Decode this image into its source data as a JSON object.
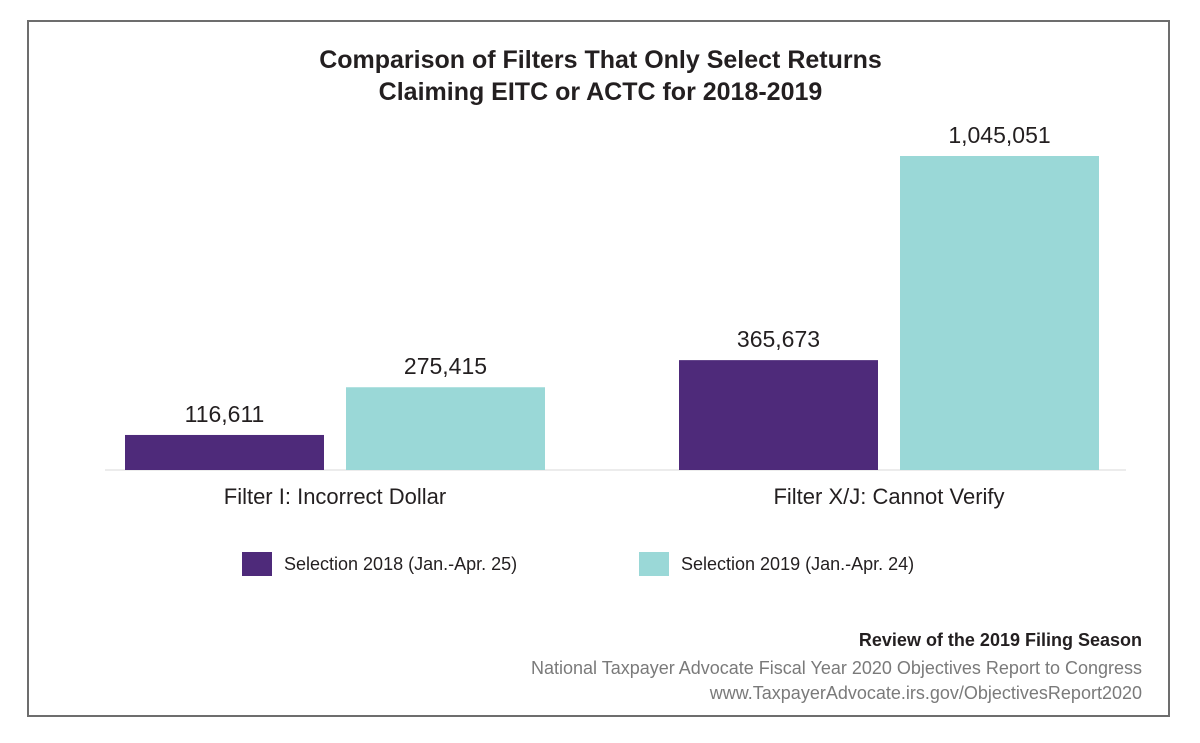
{
  "chart_data": {
    "type": "bar",
    "title_line1": "Comparison of Filters That Only Select Returns",
    "title_line2": "Claiming EITC or ACTC for 2018-2019",
    "categories": [
      "Filter I: Incorrect Dollar",
      "Filter X/J: Cannot Verify"
    ],
    "series": [
      {
        "name": "Selection 2018 (Jan.-Apr. 25)",
        "color": "#4e2a7a",
        "values": [
          116611,
          365673
        ],
        "labels": [
          "116,611",
          "365,673"
        ]
      },
      {
        "name": "Selection 2019 (Jan.-Apr. 24)",
        "color": "#9ad8d7",
        "values": [
          275415,
          1045051
        ],
        "labels": [
          "275,415",
          "1,045,051"
        ]
      }
    ],
    "ylim": [
      0,
      1045051
    ],
    "xlabel": "",
    "ylabel": "",
    "legend_position": "bottom"
  },
  "footer": {
    "report_title": "Review of the 2019 Filing Season",
    "report_subtitle": "National Taxpayer Advocate Fiscal Year 2020 Objectives Report to Congress",
    "url": "www.TaxpayerAdvocate.irs.gov/ObjectivesReport2020"
  }
}
